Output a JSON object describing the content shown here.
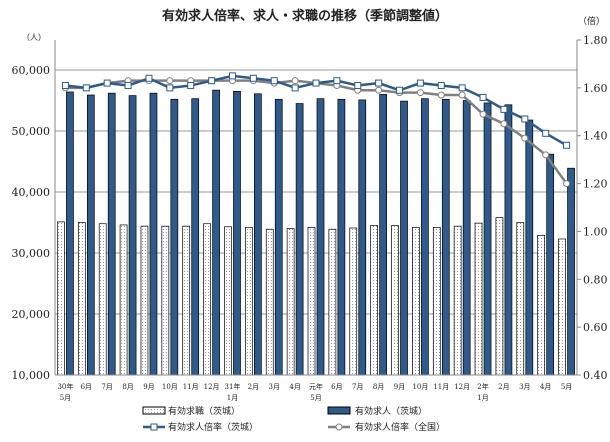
{
  "chart_data": {
    "type": "bar+line",
    "title": "有効求人倍率、求人・求職の推移（季節調整値）",
    "ylabel_left": "（人）",
    "ylabel_right": "（倍）",
    "ylim_left": [
      10000,
      65000
    ],
    "ylim_right": [
      0.4,
      1.8
    ],
    "yticks_left": [
      "10,000",
      "20,000",
      "30,000",
      "40,000",
      "50,000",
      "60,000"
    ],
    "yticks_right": [
      "0.40",
      "0.60",
      "0.80",
      "1.00",
      "1.20",
      "1.40",
      "1.60",
      "1.80"
    ],
    "categories": [
      [
        "30年",
        "5月"
      ],
      [
        "6月"
      ],
      [
        "7月"
      ],
      [
        "8月"
      ],
      [
        "9月"
      ],
      [
        "10月"
      ],
      [
        "11月"
      ],
      [
        "12月"
      ],
      [
        "31年",
        "1月"
      ],
      [
        "2月"
      ],
      [
        "3月"
      ],
      [
        "4月"
      ],
      [
        "元年",
        "5月"
      ],
      [
        "6月"
      ],
      [
        "7月"
      ],
      [
        "8月"
      ],
      [
        "9月"
      ],
      [
        "10月"
      ],
      [
        "11月"
      ],
      [
        "12月"
      ],
      [
        "2年",
        "1月"
      ],
      [
        "2月"
      ],
      [
        "3月"
      ],
      [
        "4月"
      ],
      [
        "5月"
      ]
    ],
    "grid": true,
    "legend_position": "bottom",
    "series": [
      {
        "name": "有効求職（茨城）",
        "type": "bar",
        "axis": "left",
        "color": "#ffffff",
        "values": [
          35100,
          35000,
          34800,
          34600,
          34400,
          34400,
          34400,
          34800,
          34300,
          34200,
          33900,
          34000,
          34200,
          33900,
          34100,
          34500,
          34500,
          34200,
          34200,
          34400,
          34900,
          35800,
          35000,
          32900,
          32300
        ]
      },
      {
        "name": "有効求人（茨城）",
        "type": "bar",
        "axis": "left",
        "color": "#2f5a8c",
        "values": [
          56400,
          55900,
          56200,
          55800,
          56200,
          55200,
          55300,
          56700,
          56500,
          56100,
          55200,
          54500,
          55300,
          55200,
          55100,
          56000,
          54900,
          55300,
          55200,
          55000,
          54600,
          54300,
          51800,
          46200,
          43900
        ]
      },
      {
        "name": "有効求人倍率（茨城）",
        "type": "line",
        "axis": "right",
        "color": "#2f5a8c",
        "values": [
          1.61,
          1.6,
          1.62,
          1.61,
          1.64,
          1.6,
          1.61,
          1.63,
          1.65,
          1.64,
          1.63,
          1.6,
          1.62,
          1.63,
          1.61,
          1.62,
          1.59,
          1.62,
          1.61,
          1.6,
          1.56,
          1.51,
          1.47,
          1.41,
          1.36
        ]
      },
      {
        "name": "有効求人倍率（全国）",
        "type": "line",
        "axis": "right",
        "color": "#808080",
        "values": [
          1.6,
          1.6,
          1.62,
          1.63,
          1.63,
          1.63,
          1.63,
          1.63,
          1.63,
          1.63,
          1.62,
          1.63,
          1.62,
          1.61,
          1.59,
          1.59,
          1.58,
          1.58,
          1.57,
          1.57,
          1.49,
          1.45,
          1.39,
          1.32,
          1.2
        ]
      }
    ]
  }
}
